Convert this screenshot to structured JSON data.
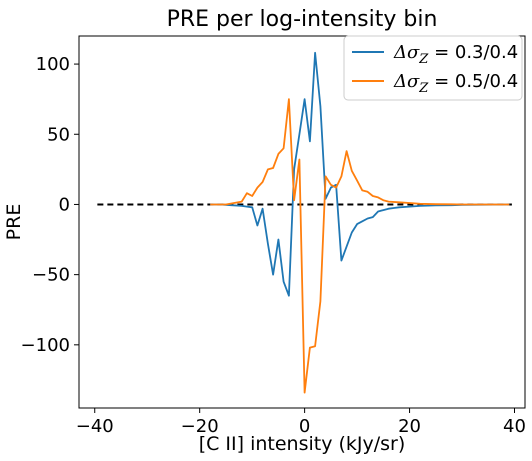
{
  "chart_data": {
    "type": "line",
    "title": "PRE per log-intensity bin",
    "xlabel": "[C II] intensity (kJy/sr)",
    "ylabel": "PRE",
    "xlim": [
      -43,
      42
    ],
    "ylim": [
      -145,
      120
    ],
    "xticks": [
      -40,
      -20,
      0,
      20,
      40
    ],
    "xtick_labels": [
      "−40",
      "−20",
      "0",
      "20",
      "40"
    ],
    "yticks": [
      100,
      50,
      0,
      -50,
      -100
    ],
    "ytick_labels": [
      "100",
      "50",
      "0",
      "−50",
      "−100"
    ],
    "grid": false,
    "legend_position": "top-right",
    "reference_line": {
      "y": 0,
      "x_range": [
        -39.5,
        39.5
      ],
      "style": "dashed",
      "color": "#000000"
    },
    "series": [
      {
        "name": "ΔσZ = 0.3/0.4",
        "legend_label": {
          "delta": "Δσ",
          "sub": "Z",
          "rest": " = 0.3/0.4"
        },
        "color": "#1f77b4",
        "x": [
          -18,
          -16,
          -14,
          -12,
          -11,
          -10,
          -9,
          -8,
          -7,
          -6,
          -5,
          -4,
          -3,
          -2,
          -1,
          0,
          1,
          2,
          3,
          4,
          5,
          6,
          7,
          8,
          9,
          10,
          11,
          12,
          13,
          14,
          15,
          16,
          17,
          18,
          20,
          22,
          25,
          28,
          30,
          33,
          36,
          39
        ],
        "y": [
          0,
          0,
          -0.5,
          -1,
          -1.5,
          -2,
          -15,
          -3,
          -28,
          -50,
          -25,
          -55,
          -65,
          25,
          50,
          75,
          45,
          108,
          70,
          4,
          12,
          14,
          -40,
          -30,
          -20,
          -14,
          -12,
          -10,
          -9,
          -5,
          -4,
          -3,
          -2.5,
          -2,
          -1.5,
          -1,
          -0.7,
          -0.5,
          -0.3,
          -0.2,
          -0.1,
          0
        ]
      },
      {
        "name": "ΔσZ = 0.5/0.4",
        "legend_label": {
          "delta": "Δσ",
          "sub": "Z",
          "rest": " = 0.5/0.4"
        },
        "color": "#ff7f0e",
        "x": [
          -18,
          -15,
          -12,
          -11,
          -10,
          -9,
          -8,
          -7,
          -6,
          -5,
          -4,
          -3,
          -2,
          -1,
          0,
          1,
          2,
          3,
          4,
          5,
          6,
          7,
          8,
          9,
          10,
          11,
          12,
          13,
          14,
          15,
          16,
          18,
          20,
          22,
          25,
          28,
          30,
          35,
          39
        ],
        "y": [
          0,
          0,
          2,
          8,
          6,
          12,
          16,
          25,
          26,
          36,
          40,
          75,
          3,
          32,
          -134,
          -102,
          -101,
          -69,
          20,
          14,
          12,
          20,
          38,
          24,
          17,
          10,
          9,
          6,
          5,
          3,
          2,
          1.5,
          1,
          0.5,
          0.2,
          0.1,
          0,
          0,
          0
        ]
      }
    ]
  }
}
